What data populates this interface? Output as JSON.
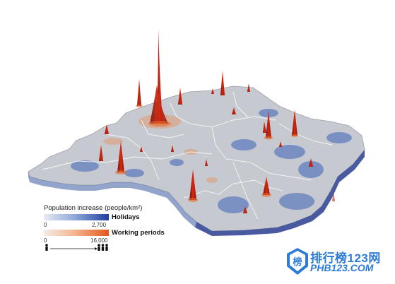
{
  "legend": {
    "title": "Population increase (people/km²)",
    "holidays": {
      "label": "Holidays",
      "min": "0",
      "max": "2,700",
      "color_low": "#e8ebf3",
      "color_high": "#1f3f9e"
    },
    "working": {
      "label": "Working periods",
      "min": "0",
      "max": "16,000",
      "color_low": "#f4ece6",
      "color_high": "#e3561e"
    }
  },
  "watermark": {
    "logo_char": "榜",
    "text_cn": "排行榜123网",
    "text_en": "PHB123.COM"
  },
  "icons": [
    "person-icon",
    "person-group-icon",
    "watermark-logo-icon"
  ]
}
